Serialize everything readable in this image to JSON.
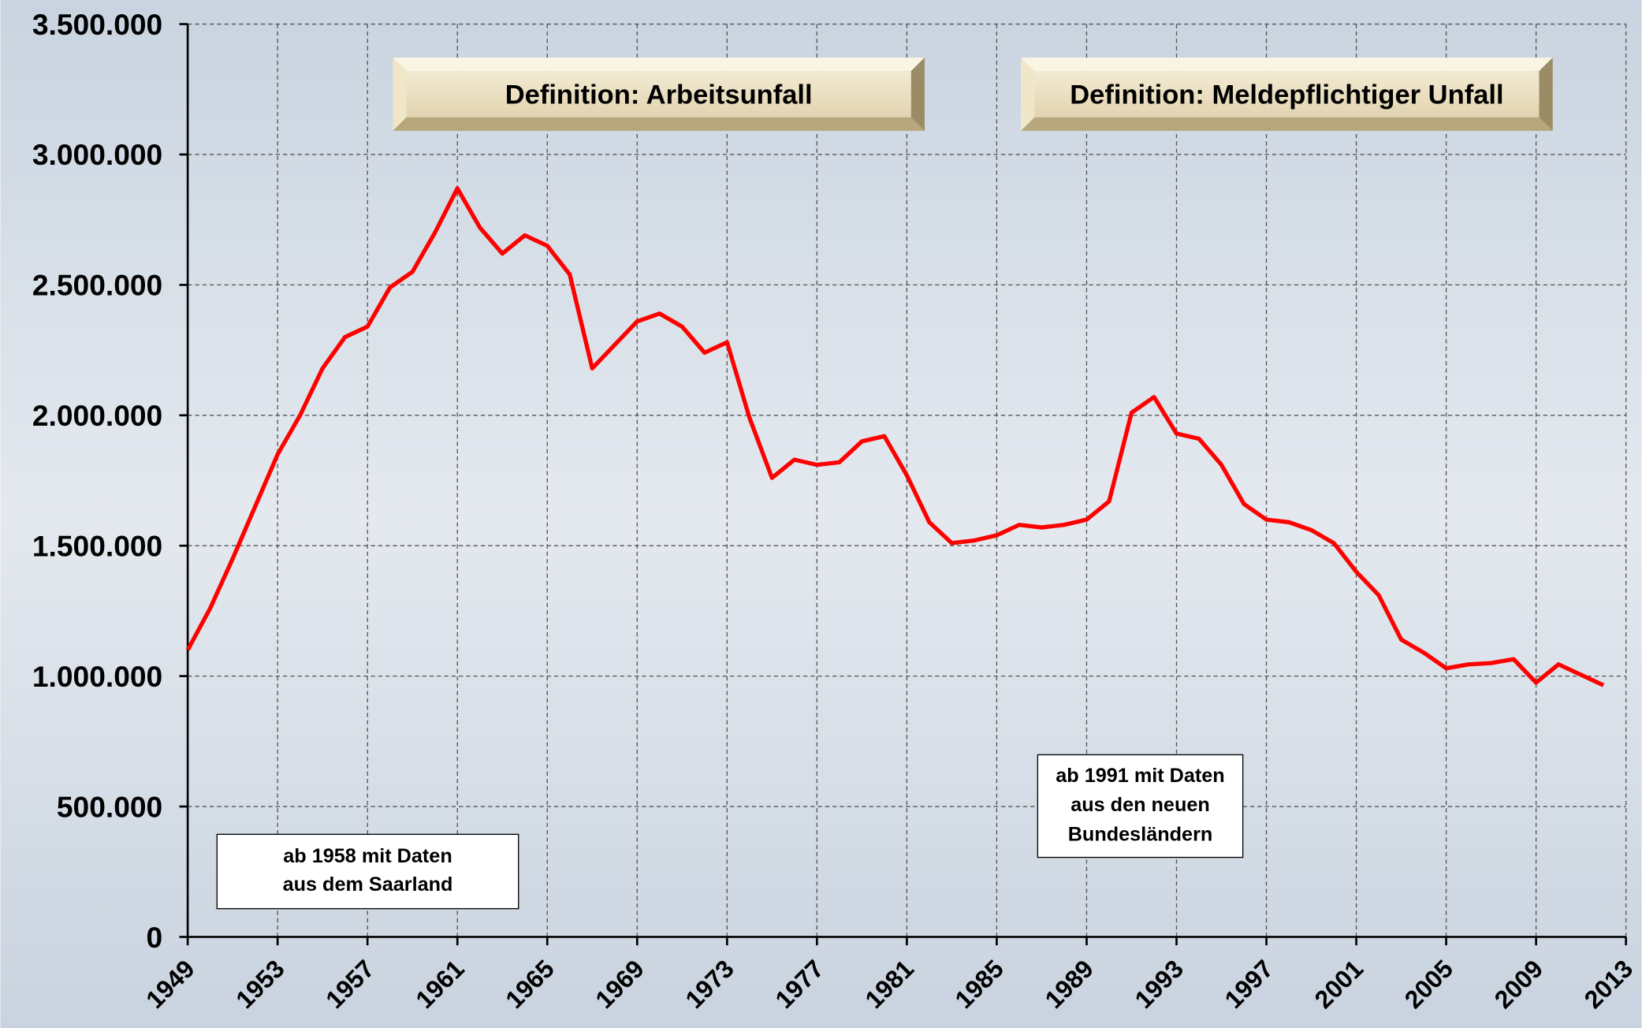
{
  "chart_data": {
    "type": "line",
    "x": [
      1949,
      1950,
      1951,
      1952,
      1953,
      1954,
      1955,
      1956,
      1957,
      1958,
      1959,
      1960,
      1961,
      1962,
      1963,
      1964,
      1965,
      1966,
      1967,
      1968,
      1969,
      1970,
      1971,
      1972,
      1973,
      1974,
      1975,
      1976,
      1977,
      1978,
      1979,
      1980,
      1981,
      1982,
      1983,
      1984,
      1985,
      1986,
      1987,
      1988,
      1989,
      1990,
      1991,
      1992,
      1993,
      1994,
      1995,
      1996,
      1997,
      1998,
      1999,
      2000,
      2001,
      2002,
      2003,
      2004,
      2005,
      2006,
      2007,
      2008,
      2009,
      2010,
      2011,
      2012
    ],
    "series": [
      {
        "color": "#ff0000",
        "values": [
          1100000,
          1260000,
          1450000,
          1650000,
          1850000,
          2000000,
          2180000,
          2300000,
          2340000,
          2490000,
          2550000,
          2700000,
          2870000,
          2720000,
          2620000,
          2690000,
          2650000,
          2540000,
          2180000,
          2270000,
          2360000,
          2390000,
          2340000,
          2240000,
          2280000,
          1990000,
          1760000,
          1830000,
          1810000,
          1820000,
          1900000,
          1920000,
          1770000,
          1590000,
          1510000,
          1520000,
          1540000,
          1580000,
          1570000,
          1580000,
          1600000,
          1670000,
          2010000,
          2070000,
          1930000,
          1910000,
          1810000,
          1660000,
          1600000,
          1590000,
          1560000,
          1510000,
          1400000,
          1310000,
          1140000,
          1090000,
          1030000,
          1045000,
          1050000,
          1065000,
          975000,
          1045000,
          1005000,
          965000
        ]
      }
    ],
    "xlim": [
      1949,
      2013
    ],
    "xticks": [
      1949,
      1953,
      1957,
      1961,
      1965,
      1969,
      1973,
      1977,
      1981,
      1985,
      1989,
      1993,
      1997,
      2001,
      2005,
      2009,
      2013
    ],
    "ylim": [
      0,
      3500000
    ],
    "yticks": [
      0,
      {
        "value": 500000,
        "label": "500.000"
      },
      {
        "value": 1000000,
        "label": "1.000.000"
      },
      {
        "value": 1500000,
        "label": "1.500.000"
      },
      {
        "value": 2000000,
        "label": "2.000.000"
      },
      {
        "value": 2500000,
        "label": "2.500.000"
      },
      {
        "value": 3000000,
        "label": "3.000.000"
      },
      {
        "value": 3500000,
        "label": "3.500.000"
      }
    ],
    "grid": true,
    "annotations": [
      {
        "text": "Definition: Arbeitsunfall"
      },
      {
        "text": "Definition: Meldepflichtiger Unfall"
      },
      {
        "lines": [
          "ab 1958 mit Daten",
          "aus dem Saarland"
        ]
      },
      {
        "lines": [
          "ab 1991 mit Daten",
          "aus den neuen",
          "Bundesländern"
        ]
      }
    ]
  }
}
